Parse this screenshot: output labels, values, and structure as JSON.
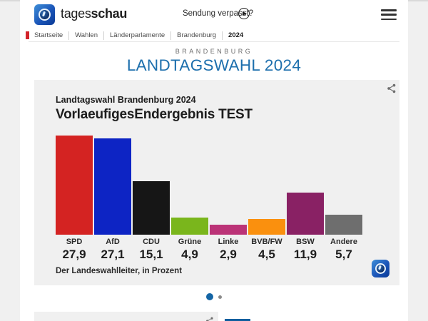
{
  "header": {
    "brand_regular": "tages",
    "brand_bold": "schau",
    "broadcast_link": "Sendung verpasst?",
    "icons": {
      "logo": "tagesschau-globe-icon",
      "play": "play-icon",
      "menu": "hamburger-icon"
    }
  },
  "breadcrumb": {
    "items": [
      "Startseite",
      "Wahlen",
      "Länderparlamente",
      "Brandenburg",
      "2024"
    ]
  },
  "hero": {
    "kicker": "BRANDENBURG",
    "title": "LANDTAGSWAHL 2024"
  },
  "chart_card": {
    "kicker": "Landtagswahl Brandenburg 2024",
    "title": "VorlaeufigesEndergebnis TEST",
    "source": "Der Landeswahlleiter, in Prozent",
    "share_icon": "share-icon",
    "watermark_icon": "tagesschau-globe-icon"
  },
  "chart_data": {
    "type": "bar",
    "title": "VorlaeufigesEndergebnis TEST",
    "subtitle": "Landtagswahl Brandenburg 2024",
    "categories": [
      "SPD",
      "AfD",
      "CDU",
      "Grüne",
      "Linke",
      "BVB/FW",
      "BSW",
      "Andere"
    ],
    "values": [
      27.9,
      27.1,
      15.1,
      4.9,
      2.9,
      4.5,
      11.9,
      5.7
    ],
    "value_labels": [
      "27,9",
      "27,1",
      "15,1",
      "4,9",
      "2,9",
      "4,5",
      "11,9",
      "5,7"
    ],
    "colors": [
      "#d42322",
      "#0d24c4",
      "#161616",
      "#7ab61c",
      "#bb3377",
      "#fa900e",
      "#892164",
      "#6e6e6e"
    ],
    "unit": "Prozent",
    "ylim": [
      0,
      30
    ],
    "grid": false,
    "legend": "none",
    "source": "Der Landeswahlleiter, in Prozent"
  },
  "carousel": {
    "dots": [
      {
        "label": "slide-1",
        "active": true
      },
      {
        "label": "slide-2",
        "active": false
      }
    ]
  },
  "theme": {
    "accent_blue": "#1d6fad",
    "active_dot_blue": "#1465a5",
    "breadcrumb_accent_red": "#d2232a",
    "card_bg": "#f0f0f0",
    "bottom_blue_bar": "#0f5e9e"
  }
}
